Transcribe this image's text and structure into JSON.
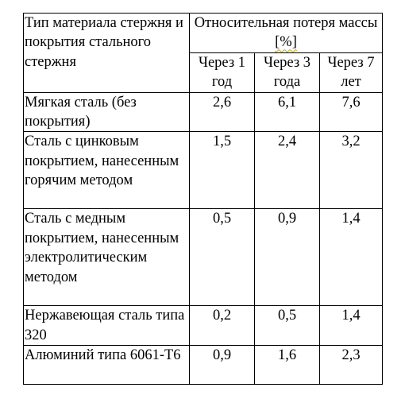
{
  "table": {
    "header": {
      "material": "Тип материала стержня и покрытия стального стержня",
      "group_prefix": "Относительная потеря массы ",
      "group_unit": "[%]",
      "years": [
        "Через 1 год",
        "Через 3 года",
        "Через 7 лет"
      ]
    },
    "rows": [
      {
        "material": "Мягкая сталь (без покрытия)",
        "values": [
          "2,6",
          "6,1",
          "7,6"
        ]
      },
      {
        "material": "Сталь с цинковым покрытием, нанесенным горячим методом",
        "values": [
          "1,5",
          "2,4",
          "3,2"
        ]
      },
      {
        "material": "Сталь с медным покрытием, нанесенным электролитическим методом",
        "values": [
          "0,5",
          "0,9",
          "1,4"
        ]
      },
      {
        "material": "Нержавеющая сталь типа 320",
        "values": [
          "0,2",
          "0,5",
          "1,4"
        ]
      },
      {
        "material": "Алюминий типа 6061-Т6",
        "values": [
          "0,9",
          "1,6",
          "2,3"
        ]
      }
    ]
  }
}
